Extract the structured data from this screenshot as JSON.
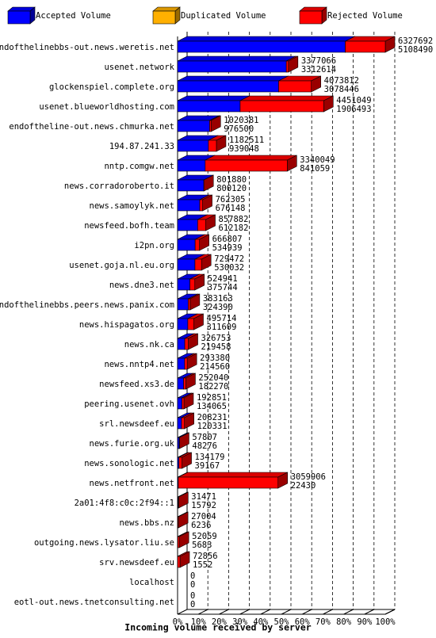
{
  "chart_data": {
    "type": "bar",
    "orientation": "horizontal",
    "stacked": true,
    "xlabel": "Incoming volume received by server",
    "legend": "top",
    "grid": true,
    "categories": [
      "endofthelinebbs-out.news.weretis.net",
      "usenet.network",
      "glockenspiel.complete.org",
      "usenet.blueworldhosting.com",
      "endoftheline-out.news.chmurka.net",
      "194.87.241.33",
      "nntp.comgw.net",
      "news.corradoroberto.it",
      "news.samoylyk.net",
      "newsfeed.bofh.team",
      "i2pn.org",
      "usenet.goja.nl.eu.org",
      "news.dne3.net",
      "endofthelinebbs.peers.news.panix.com",
      "news.hispagatos.org",
      "news.nk.ca",
      "news.nntp4.net",
      "newsfeed.xs3.de",
      "peering.usenet.ovh",
      "srl.newsdeef.eu",
      "news.furie.org.uk",
      "news.sonologic.net",
      "news.netfront.net",
      "2a01:4f8:c0c:2f94::1",
      "news.bbs.nz",
      "outgoing.news.lysator.liu.se",
      "srv.newsdeef.eu",
      "localhost",
      "eotl-out.news.tnetconsulting.net"
    ],
    "totals": [
      6327692,
      3377066,
      4073812,
      4451049,
      1020381,
      1182511,
      3340049,
      801880,
      762305,
      857882,
      666807,
      729472,
      524941,
      383163,
      495714,
      326753,
      293380,
      252040,
      192851,
      208231,
      57807,
      134179,
      3059906,
      31471,
      27004,
      52059,
      72856,
      0,
      0
    ],
    "series": [
      {
        "name": "Accepted Volume",
        "color": "#0000ff",
        "values": [
          5108490,
          3312614,
          3078446,
          1906493,
          976500,
          939048,
          841059,
          800120,
          676148,
          612182,
          534939,
          530032,
          375744,
          324390,
          311609,
          219458,
          214560,
          182270,
          134065,
          120331,
          48276,
          39167,
          22430,
          15792,
          6236,
          5683,
          1552,
          0,
          0
        ]
      },
      {
        "name": "Duplicated Volume",
        "color": "#ffb000",
        "values": [
          0,
          0,
          0,
          0,
          0,
          0,
          0,
          0,
          0,
          0,
          0,
          0,
          0,
          0,
          0,
          0,
          0,
          0,
          0,
          0,
          0,
          0,
          0,
          0,
          0,
          0,
          0,
          0,
          0
        ]
      },
      {
        "name": "Rejected Volume",
        "color": "#ff0000",
        "values": [
          1219202,
          64452,
          995366,
          2544556,
          43881,
          243463,
          2498990,
          1760,
          86157,
          245700,
          131868,
          199440,
          149197,
          58773,
          184105,
          107295,
          78820,
          69770,
          58786,
          87900,
          9531,
          95012,
          3037476,
          15679,
          20768,
          46376,
          71304,
          0,
          0
        ]
      }
    ],
    "xlim": [
      0,
      6327692
    ],
    "xticks": [
      {
        "value": 0,
        "label": "0%"
      },
      {
        "value": 632769.2,
        "label": "10%"
      },
      {
        "value": 1265538.4,
        "label": "20%"
      },
      {
        "value": 1898307.6,
        "label": "30%"
      },
      {
        "value": 2531076.8,
        "label": "40%"
      },
      {
        "value": 3163846,
        "label": "50%"
      },
      {
        "value": 3796615.2,
        "label": "60%"
      },
      {
        "value": 4429384.4,
        "label": "70%"
      },
      {
        "value": 5062153.6,
        "label": "80%"
      },
      {
        "value": 5694922.8,
        "label": "90%"
      },
      {
        "value": 6327692,
        "label": "100%"
      }
    ]
  }
}
